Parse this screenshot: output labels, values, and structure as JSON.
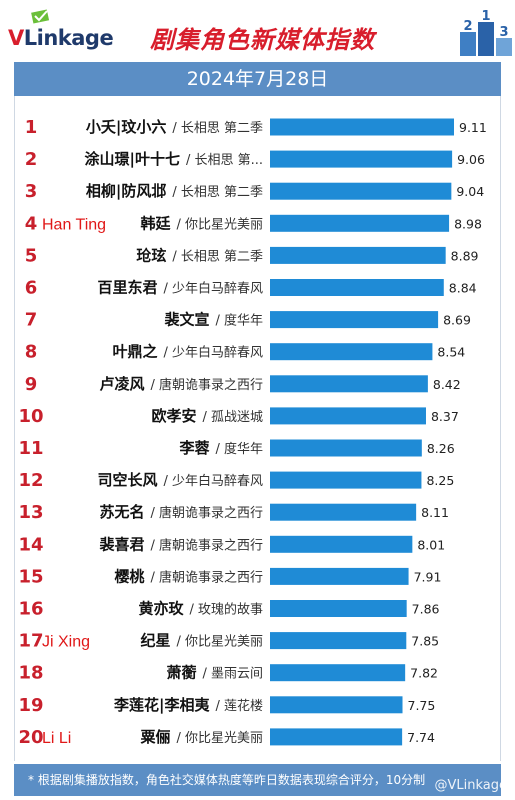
{
  "header": {
    "logo": "VLinkage",
    "title": "剧集角色新媒体指数",
    "date": "2024年7月28日",
    "podium": [
      "2",
      "1",
      "3"
    ]
  },
  "footer": {
    "note": "* 根据剧集播放指数，角色社交媒体热度等昨日数据表现综合评分，10分制",
    "watermark": "@VLinkage"
  },
  "colors": {
    "bar": "#1f8bd6",
    "accent": "#d81e2c",
    "band": "#5b8ec5"
  },
  "chart_data": {
    "type": "bar",
    "orientation": "horizontal",
    "xlim": [
      4.25,
      9.11
    ],
    "rows": [
      {
        "rank": "1",
        "name": "小夭|玟小六",
        "show": "长相思 第二季",
        "value": 9.11,
        "note": ""
      },
      {
        "rank": "2",
        "name": "涂山璟|叶十七",
        "show": "长相思 第...",
        "value": 9.06,
        "note": ""
      },
      {
        "rank": "3",
        "name": "相柳|防风邶",
        "show": "长相思 第二季",
        "value": 9.04,
        "note": ""
      },
      {
        "rank": "4",
        "name": "韩廷",
        "show": "你比星光美丽",
        "value": 8.98,
        "note": "Han Ting"
      },
      {
        "rank": "5",
        "name": "玱玹",
        "show": "长相思 第二季",
        "value": 8.89,
        "note": ""
      },
      {
        "rank": "6",
        "name": "百里东君",
        "show": "少年白马醉春风",
        "value": 8.84,
        "note": ""
      },
      {
        "rank": "7",
        "name": "裴文宣",
        "show": "度华年",
        "value": 8.69,
        "note": ""
      },
      {
        "rank": "8",
        "name": "叶鼎之",
        "show": "少年白马醉春风",
        "value": 8.54,
        "note": ""
      },
      {
        "rank": "9",
        "name": "卢凌风",
        "show": "唐朝诡事录之西行",
        "value": 8.42,
        "note": ""
      },
      {
        "rank": "10",
        "name": "欧孝安",
        "show": "孤战迷城",
        "value": 8.37,
        "note": ""
      },
      {
        "rank": "11",
        "name": "李蓉",
        "show": "度华年",
        "value": 8.26,
        "note": ""
      },
      {
        "rank": "12",
        "name": "司空长风",
        "show": "少年白马醉春风",
        "value": 8.25,
        "note": ""
      },
      {
        "rank": "13",
        "name": "苏无名",
        "show": "唐朝诡事录之西行",
        "value": 8.11,
        "note": ""
      },
      {
        "rank": "14",
        "name": "裴喜君",
        "show": "唐朝诡事录之西行",
        "value": 8.01,
        "note": ""
      },
      {
        "rank": "15",
        "name": "樱桃",
        "show": "唐朝诡事录之西行",
        "value": 7.91,
        "note": ""
      },
      {
        "rank": "16",
        "name": "黄亦玫",
        "show": "玫瑰的故事",
        "value": 7.86,
        "note": ""
      },
      {
        "rank": "17",
        "name": "纪星",
        "show": "你比星光美丽",
        "value": 7.85,
        "note": "Ji Xing"
      },
      {
        "rank": "18",
        "name": "萧蘅",
        "show": "墨雨云间",
        "value": 7.82,
        "note": ""
      },
      {
        "rank": "19",
        "name": "李莲花|李相夷",
        "show": "莲花楼",
        "value": 7.75,
        "note": ""
      },
      {
        "rank": "20",
        "name": "粟俪",
        "show": "你比星光美丽",
        "value": 7.74,
        "note": "Li Li"
      }
    ]
  }
}
